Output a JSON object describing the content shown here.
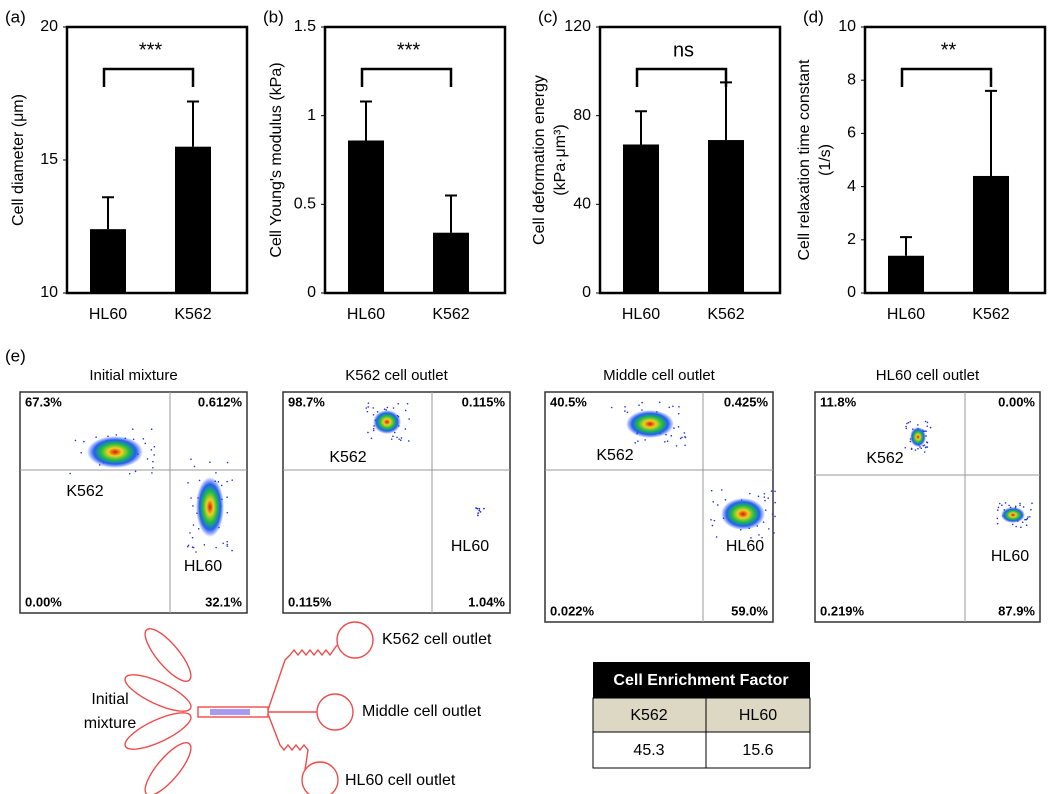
{
  "chart_data": [
    {
      "type": "bar",
      "panel_label": "(a)",
      "ylabel": [
        "Cell diameter (μm)"
      ],
      "categories": [
        "HL60",
        "K562"
      ],
      "values": [
        12.4,
        15.5
      ],
      "errors": [
        1.2,
        1.7
      ],
      "color": "#000000",
      "ylim": [
        10,
        20
      ],
      "yticks": [
        10,
        15,
        20
      ],
      "annotation": "***"
    },
    {
      "type": "bar",
      "panel_label": "(b)",
      "ylabel": [
        "Cell Young's modulus (kPa)"
      ],
      "categories": [
        "HL60",
        "K562"
      ],
      "values": [
        0.86,
        0.34
      ],
      "errors": [
        0.22,
        0.21
      ],
      "color": "#000000",
      "ylim": [
        0,
        1.5
      ],
      "yticks": [
        0,
        0.5,
        1,
        1.5
      ],
      "annotation": "***"
    },
    {
      "type": "bar",
      "panel_label": "(c)",
      "ylabel": [
        "Cell deformation energy",
        "(kPa·μm³)"
      ],
      "categories": [
        "HL60",
        "K562"
      ],
      "values": [
        67,
        69
      ],
      "errors": [
        15,
        26
      ],
      "color": "#000000",
      "ylim": [
        0,
        120
      ],
      "yticks": [
        0,
        40,
        80,
        120
      ],
      "annotation": "ns"
    },
    {
      "type": "bar",
      "panel_label": "(d)",
      "ylabel": [
        "Cell relaxation time constant",
        "(1/s)"
      ],
      "categories": [
        "HL60",
        "K562"
      ],
      "values": [
        1.4,
        4.4
      ],
      "errors": [
        0.7,
        3.2
      ],
      "color": "#000000",
      "ylim": [
        0,
        10
      ],
      "yticks": [
        0,
        2,
        4,
        6,
        8,
        10
      ],
      "annotation": "**"
    }
  ],
  "flow": {
    "panel_label": "(e)",
    "panels": [
      {
        "title": "Initial mixture",
        "percentages": [
          "67.3%",
          "0.612%",
          "0.00%",
          "32.1%"
        ],
        "labels": [
          "K562",
          "HL60"
        ]
      },
      {
        "title": "K562 cell outlet",
        "percentages": [
          "98.7%",
          "0.115%",
          "0.115%",
          "1.04%"
        ],
        "labels": [
          "K562",
          "HL60"
        ]
      },
      {
        "title": "Middle cell outlet",
        "percentages": [
          "40.5%",
          "0.425%",
          "0.022%",
          "59.0%"
        ],
        "labels": [
          "K562",
          "HL60"
        ]
      },
      {
        "title": "HL60 cell outlet",
        "percentages": [
          "11.8%",
          "0.00%",
          "0.219%",
          "87.9%"
        ],
        "labels": [
          "K562",
          "HL60"
        ]
      }
    ]
  },
  "diagram": {
    "inlet": [
      "Initial",
      "mixture"
    ],
    "outlets": [
      "K562 cell outlet",
      "Middle cell outlet",
      "HL60 cell outlet"
    ]
  },
  "table": {
    "title": "Cell Enrichment Factor",
    "header": [
      "K562",
      "HL60"
    ],
    "rows": [
      [
        "45.3",
        "15.6"
      ]
    ]
  }
}
